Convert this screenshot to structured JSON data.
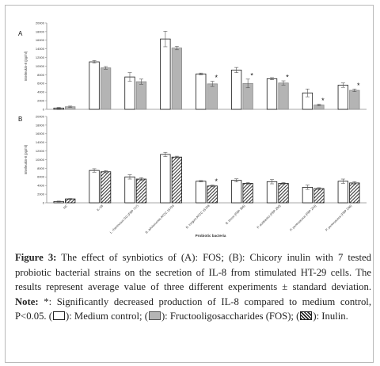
{
  "chart_data": {
    "type": "bar",
    "ylabel": "Interleukin-8 (pg/ml)",
    "xlabel": "Probiotic bacteria",
    "ylim": [
      0,
      20000
    ],
    "yticks": [
      0,
      2000,
      4000,
      6000,
      8000,
      10000,
      12000,
      14000,
      16000,
      18000,
      20000
    ],
    "categories": [
      "NC",
      "IL-1B",
      "L. rhamnosus GG (FBP 717)",
      "B. adolescentis ATCC 15703",
      "B. longum ATCC 15708",
      "B. breve (FBP 356)",
      "P. acidilactici (FBP 290)",
      "P. pentosaceus (FBP 243)",
      "P. pentosaceus (FBP 246)"
    ],
    "panels": [
      {
        "label": "A",
        "series": [
          {
            "values": [
              300,
              11000,
              7500,
              16300,
              8200,
              9100,
              7100,
              3800,
              5600
            ],
            "errors": [
              150,
              300,
              1000,
              1800,
              200,
              600,
              250,
              900,
              500
            ],
            "fill": "#ffffff"
          },
          {
            "values": [
              600,
              9600,
              6400,
              14200,
              5900,
              6000,
              6100,
              1000,
              4400
            ],
            "errors": [
              150,
              300,
              600,
              400,
              600,
              1000,
              500,
              200,
              300
            ],
            "fill": "#b4b4b4"
          }
        ],
        "significant": [
          false,
          false,
          false,
          false,
          true,
          true,
          true,
          true,
          true
        ]
      },
      {
        "label": "B",
        "series": [
          {
            "values": [
              300,
              7500,
              6000,
              11200,
              5000,
              5200,
              4900,
              3600,
              5000
            ],
            "errors": [
              100,
              400,
              500,
              500,
              150,
              350,
              500,
              500,
              500
            ],
            "fill": "#ffffff"
          },
          {
            "values": [
              900,
              7200,
              5500,
              10600,
              3900,
              4500,
              4500,
              3300,
              4600
            ],
            "errors": [
              100,
              250,
              300,
              200,
              200,
              200,
              200,
              200,
              300
            ],
            "fill": "inulin-hatch"
          }
        ],
        "significant": [
          false,
          false,
          false,
          false,
          true,
          false,
          false,
          false,
          false
        ]
      }
    ]
  },
  "caption": {
    "figure_label": "Figure 3:",
    "text1": " The effect of synbiotics of (A): FOS; (B): Chicory inulin with 7 tested probiotic bacterial strains on the secretion of IL-8 from stimulated HT-29 cells. The results represent average value of three different experiments ± standard deviation. ",
    "note_label": "Note:",
    "text2": " *: Significantly decreased production of IL-8 compared to medium control, P<0.05. (",
    "text3": "): Medium control; (",
    "text4": "): Fructooligosaccharides (FOS); (",
    "text5": "): Inulin."
  }
}
